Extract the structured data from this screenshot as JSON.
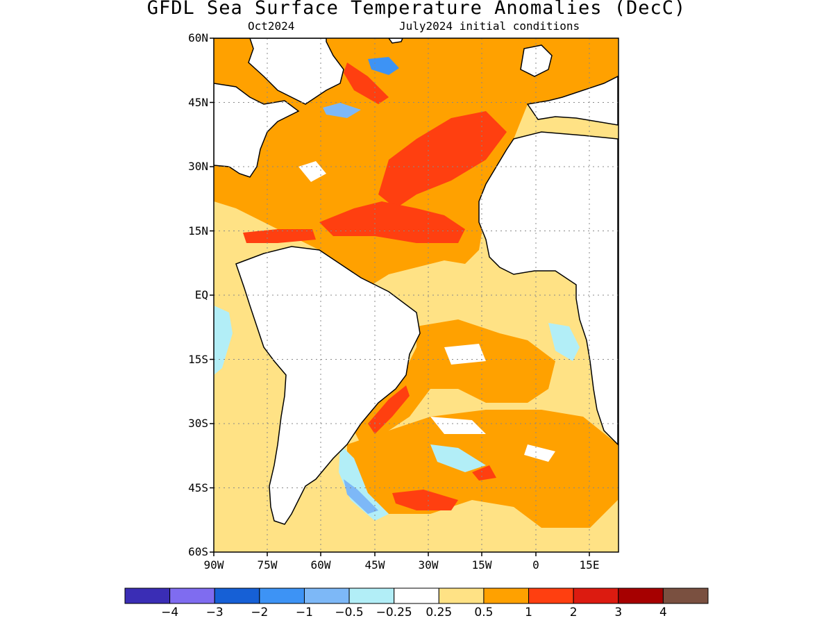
{
  "title": "GFDL Sea Surface Temperature Anomalies (DecC)",
  "subtitle_left": "Oct2024",
  "subtitle_right": "July2024 initial conditions",
  "lat_labels": [
    "60N",
    "45N",
    "30N",
    "15N",
    "EQ",
    "15S",
    "30S",
    "45S",
    "60S"
  ],
  "lon_labels": [
    "90W",
    "75W",
    "60W",
    "45W",
    "30W",
    "15W",
    "0",
    "15E"
  ],
  "colorbar": {
    "colors": [
      "#3a2db5",
      "#7f6cf0",
      "#1660d6",
      "#3d93f5",
      "#7db8f7",
      "#b2eef7",
      "#ffffff",
      "#ffe285",
      "#ffa100",
      "#ff3f10",
      "#dc1b10",
      "#a60000",
      "#7a5040"
    ],
    "labels": [
      "−4",
      "−3",
      "−2",
      "−1",
      "−0.5",
      "−0.25",
      "0.25",
      "0.5",
      "1",
      "2",
      "3",
      "4"
    ]
  },
  "map_colors": {
    "ocean_background": "#ffe285",
    "warm": "#ffa100",
    "hot": "#ff3f10",
    "very_hot": "#dc1b10",
    "neutral": "#ffffff",
    "cool": "#b2eef7",
    "cooler": "#7db8f7",
    "coolest": "#3d93f5",
    "land": "#ffffff",
    "coast": "#000000",
    "grid": "#888888"
  }
}
